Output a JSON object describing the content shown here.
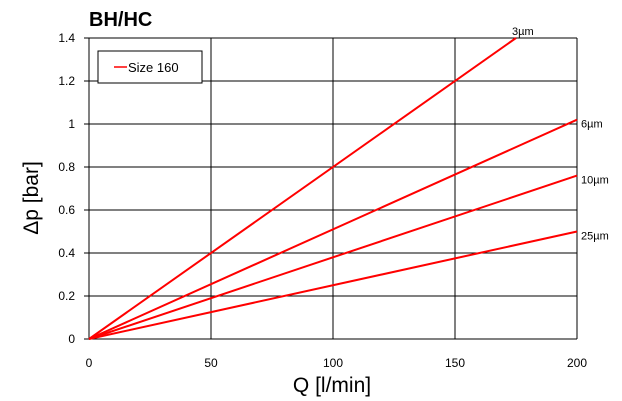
{
  "chart_data": {
    "type": "line",
    "title": "BH/HC",
    "xlabel": "Q [l/min]",
    "ylabel": "Δp [bar]",
    "xlim": [
      0,
      200
    ],
    "ylim": [
      0,
      1.4
    ],
    "x_ticks": [
      "0",
      "50",
      "100",
      "150",
      "200"
    ],
    "y_ticks": [
      "0",
      "0.2",
      "0.4",
      "0.6",
      "0.8",
      "1",
      "1.2",
      "1.4"
    ],
    "grid": true,
    "legend": {
      "label": "Size 160",
      "position": "top-left"
    },
    "series": [
      {
        "name": "3µm",
        "x": [
          0,
          175
        ],
        "y": [
          0,
          1.4
        ]
      },
      {
        "name": "6µm",
        "x": [
          0,
          200
        ],
        "y": [
          0,
          1.02
        ]
      },
      {
        "name": "10µm",
        "x": [
          0,
          200
        ],
        "y": [
          0,
          0.76
        ]
      },
      {
        "name": "25µm",
        "x": [
          0,
          200
        ],
        "y": [
          0,
          0.5
        ]
      }
    ],
    "line_color": "#ff0000",
    "gridline_color": "#000000"
  }
}
